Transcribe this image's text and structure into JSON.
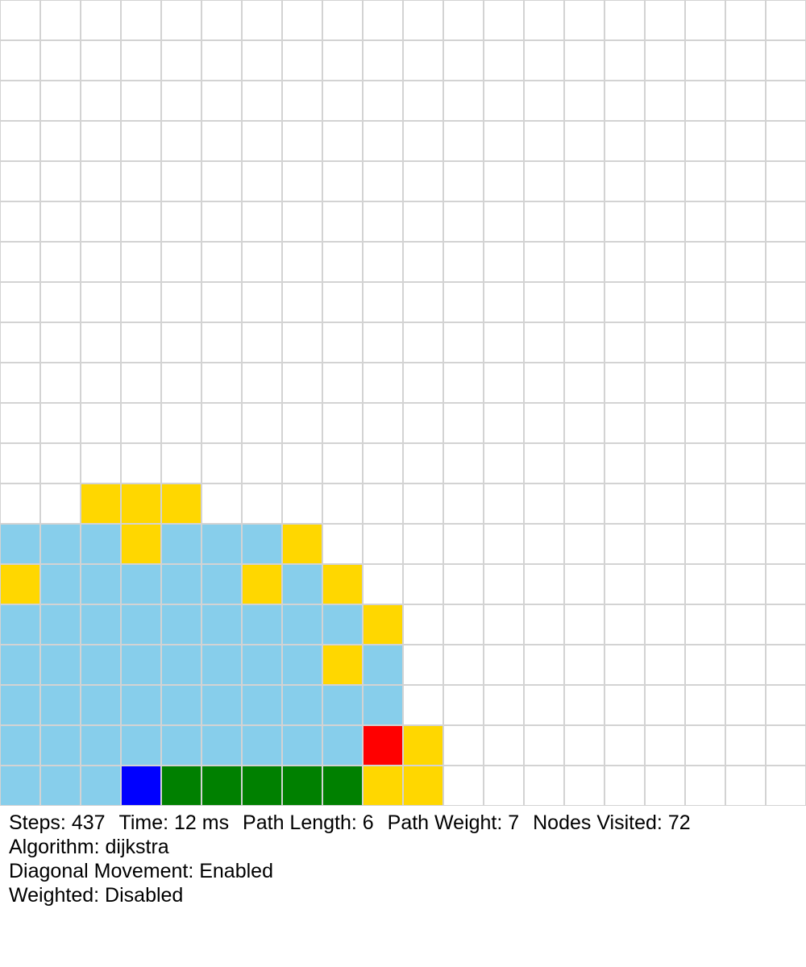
{
  "grid": {
    "cols": 20,
    "rows": 20,
    "legend": {
      ".": "empty",
      "V": "visited",
      "F": "frontier",
      "P": "path",
      "S": "start",
      "E": "end"
    },
    "colors": {
      "empty": "#ffffff",
      "visited": "#87ceeb",
      "frontier": "#ffd700",
      "path": "#008000",
      "start": "#0000ff",
      "end": "#ff0000",
      "gridline": "#d3d3d3"
    },
    "cells": [
      "....................",
      "....................",
      "....................",
      "....................",
      "....................",
      "....................",
      "....................",
      "....................",
      "....................",
      "....................",
      "....................",
      "....................",
      "..FFF...............",
      "VVVFVVVF............",
      "FVVVVVFVF...........",
      "VVVVVVVVVF..........",
      "VVVVVVVVFV..........",
      "VVVVVVVVVV..........",
      "VVVVVVVVVEF.........",
      "VVVSPPPPPFF........."
    ]
  },
  "stats": {
    "steps": "Steps: 437",
    "time": "Time: 12 ms",
    "path_length": "Path Length: 6",
    "path_weight": "Path Weight: 7",
    "nodes_visited": "Nodes Visited: 72",
    "algorithm": "Algorithm: dijkstra",
    "diagonal": "Diagonal Movement: Enabled",
    "weighted": "Weighted: Disabled"
  }
}
